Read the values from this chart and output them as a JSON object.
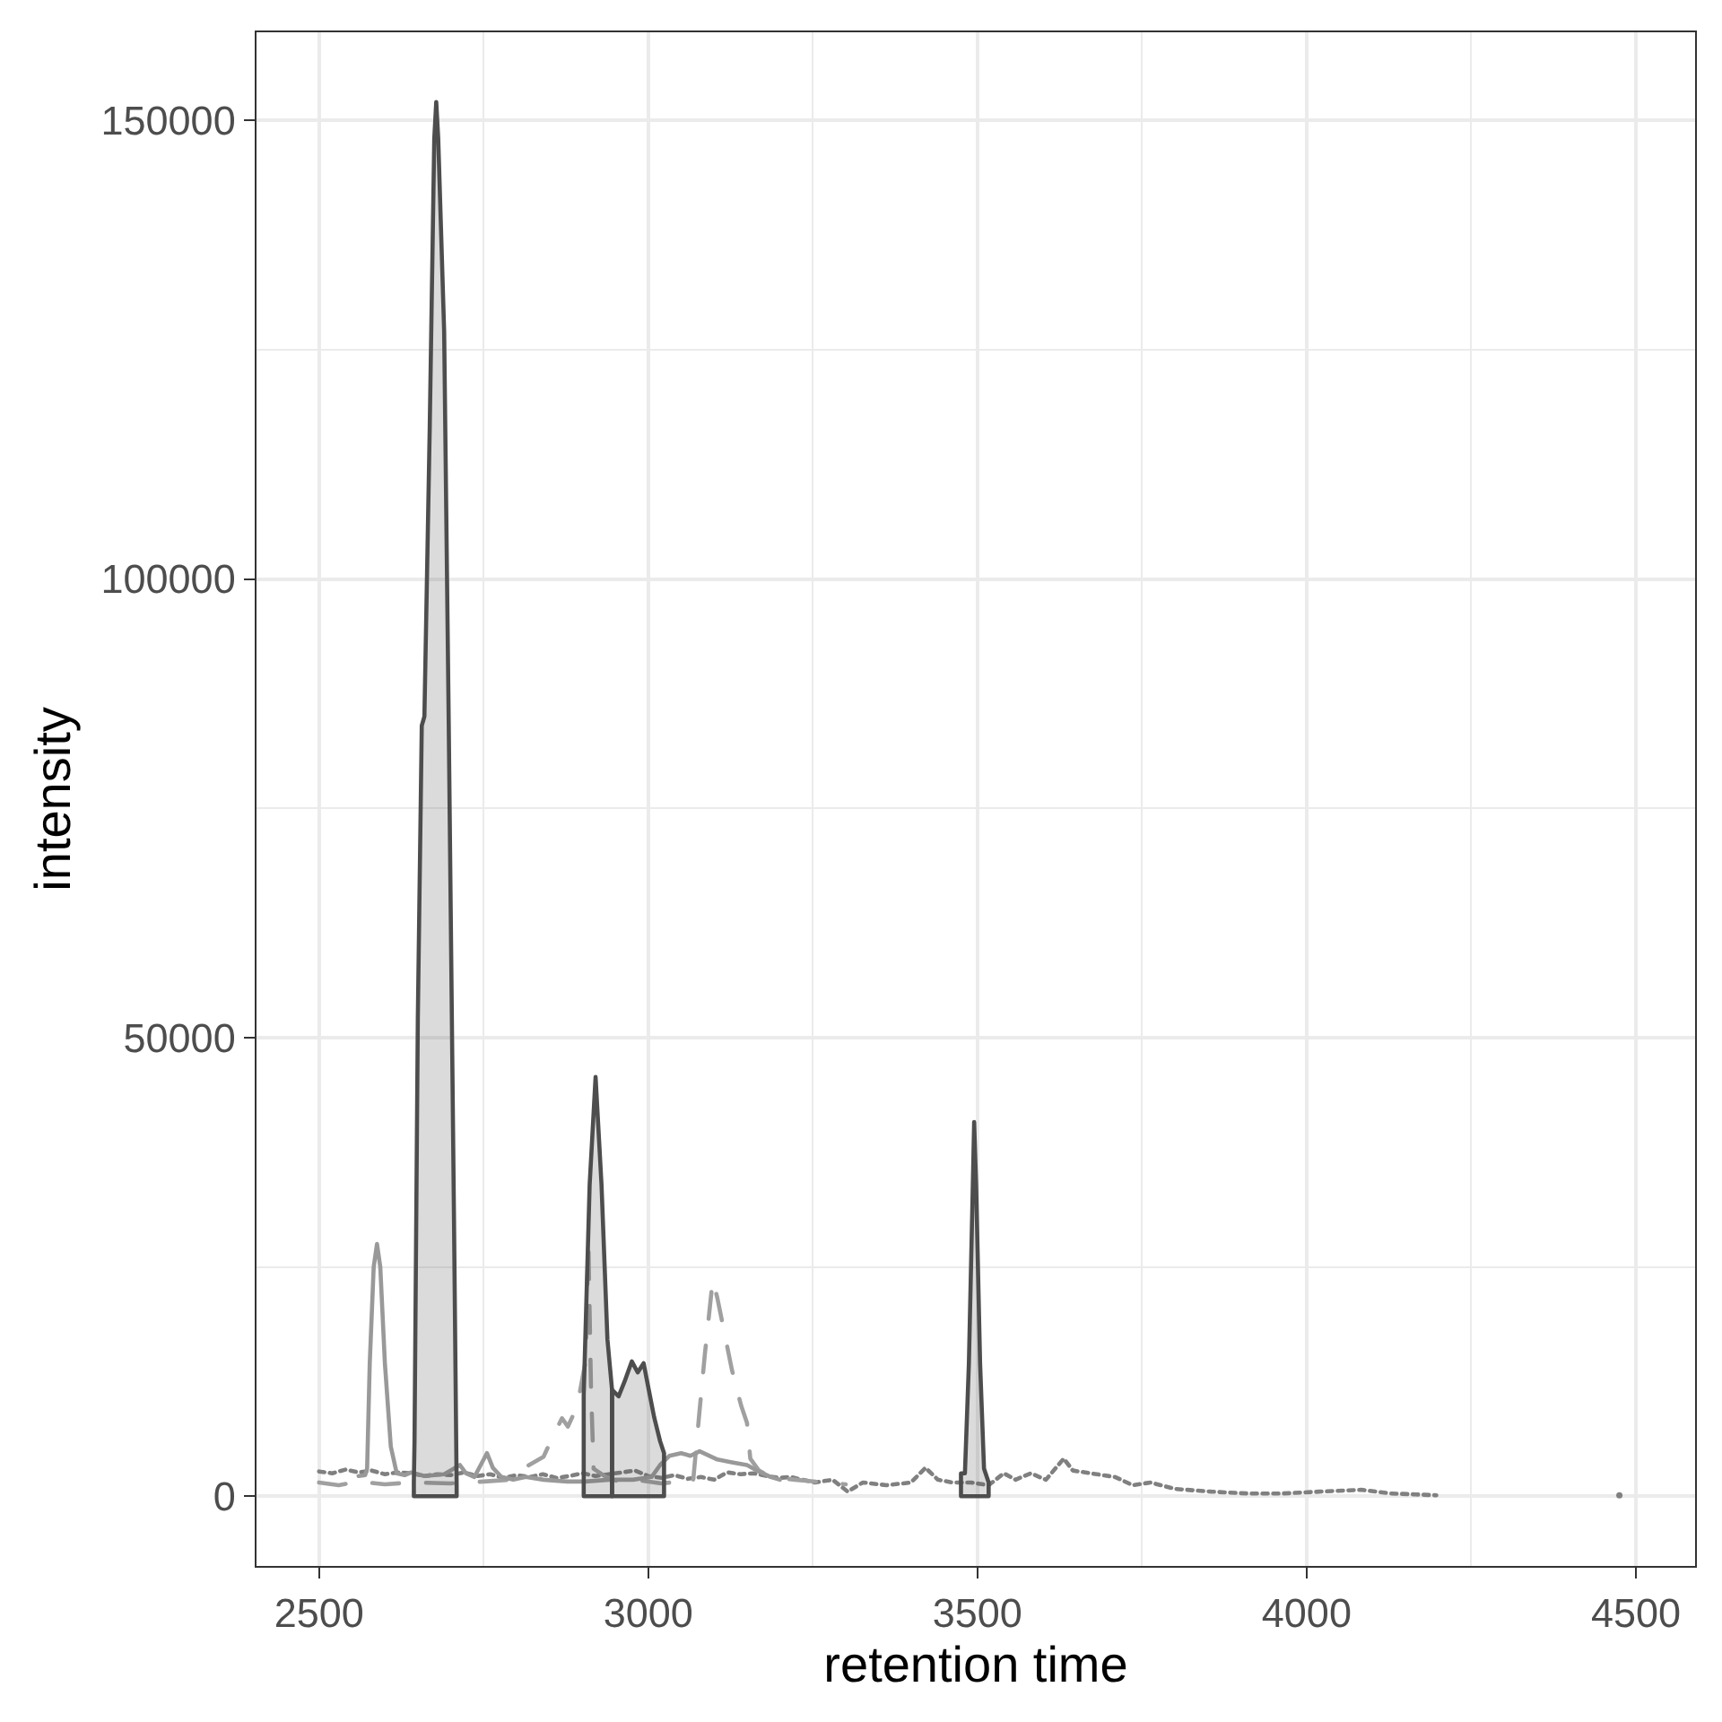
{
  "chart_data": {
    "type": "line",
    "xlabel": "retention time",
    "ylabel": "intensity",
    "xlim": [
      2405,
      4590
    ],
    "ylim": [
      -7600,
      159600
    ],
    "xticks": [
      2500,
      {
        "value": 2750,
        "label": null
      },
      3000,
      {
        "value": 3250,
        "label": null
      },
      3500,
      {
        "value": 3750,
        "label": null
      },
      4000,
      {
        "value": 4250,
        "label": null
      },
      4500
    ],
    "yticks": [
      0,
      {
        "value": 25000,
        "label": null
      },
      50000,
      {
        "value": 75000,
        "label": null
      },
      100000,
      {
        "value": 125000,
        "label": null
      },
      150000
    ],
    "grid": true,
    "series": [
      {
        "line_style": "dotted",
        "color": "#808080",
        "x": [
          2500,
          2520,
          2540,
          2560,
          2580,
          2600,
          2620,
          2640,
          2660,
          2680,
          2700,
          2720,
          2740,
          2760,
          2780,
          2800,
          2820,
          2840,
          2860,
          2880,
          2900,
          2920,
          2940,
          2960,
          2980,
          3000,
          3020,
          3040,
          3060,
          3080,
          3100,
          3120,
          3140,
          3160,
          3180,
          3200,
          3216,
          3253,
          3280,
          3303,
          3326,
          3362,
          3399,
          3421,
          3440,
          3462,
          3490,
          3517,
          3540,
          3558,
          3581,
          3604,
          3631,
          3645,
          3672,
          3709,
          3736,
          3763,
          3800,
          3855,
          3910,
          3964,
          4019,
          4083,
          4128,
          4165,
          4197
        ],
        "values": [
          2700,
          2500,
          2900,
          2600,
          2800,
          2400,
          2600,
          2500,
          2200,
          2400,
          2300,
          2600,
          2200,
          2400,
          2000,
          2300,
          2100,
          2400,
          2000,
          2200,
          2500,
          2200,
          2400,
          2600,
          2800,
          2200,
          2000,
          2300,
          1900,
          2100,
          1800,
          2600,
          2400,
          2500,
          2200,
          2000,
          2100,
          1500,
          1800,
          500,
          1500,
          1200,
          1500,
          3100,
          1800,
          1500,
          1500,
          1200,
          2500,
          1800,
          2500,
          1800,
          4100,
          2800,
          2500,
          2100,
          1200,
          1500,
          800,
          500,
          300,
          300,
          500,
          700,
          300,
          200,
          100
        ]
      },
      {
        "type": "scatter",
        "marker": "circle",
        "color": "#808080",
        "x": [
          4475
        ],
        "values": [
          100
        ]
      },
      {
        "line_style": "dashed",
        "color": "#a0a0a0",
        "x": [
          2500,
          2530,
          2560,
          2600,
          2640,
          2700,
          2750,
          2790,
          2819,
          2841,
          2855,
          2869,
          2878,
          2887,
          2896,
          2905,
          2909,
          2913,
          2917,
          2936,
          2959,
          2990,
          3020,
          3050,
          3068,
          3077,
          3086,
          3098,
          3105,
          3127,
          3141,
          3150,
          3155,
          3168,
          3186,
          3223,
          3268,
          3300
        ],
        "values": [
          1500,
          1200,
          1600,
          1300,
          1500,
          1400,
          1600,
          1800,
          3400,
          4300,
          6500,
          8500,
          7600,
          9000,
          11300,
          14800,
          27800,
          12000,
          3000,
          2100,
          1500,
          1700,
          1400,
          1600,
          1500,
          8600,
          15500,
          23600,
          21600,
          13800,
          9900,
          8000,
          4100,
          2800,
          2100,
          1800,
          1500,
          1300
        ]
      },
      {
        "line_style": "solid",
        "color": "#999999",
        "x": [
          2560,
          2570,
          2573,
          2577,
          2583,
          2588,
          2593,
          2600,
          2609,
          2618,
          2630,
          2640,
          2660,
          2690,
          2714,
          2723,
          2736,
          2755,
          2764,
          2777,
          2795,
          2814,
          2841,
          2877,
          2904,
          2941,
          2977,
          3005,
          3018,
          3032,
          3050,
          3064,
          3078,
          3105,
          3127,
          3150,
          3168,
          3186,
          3200
        ],
        "values": [
          2200,
          2300,
          3000,
          14500,
          25000,
          27500,
          25000,
          14500,
          5400,
          2500,
          2300,
          2600,
          2200,
          2400,
          3400,
          2500,
          2100,
          4700,
          3100,
          2100,
          1800,
          2100,
          1800,
          1600,
          1600,
          1800,
          1800,
          2100,
          3400,
          4400,
          4700,
          4400,
          4900,
          4000,
          3700,
          3400,
          2700,
          2100,
          1800
        ]
      },
      {
        "type": "area",
        "color": "#4d4d4d",
        "x": [
          2644,
          2644,
          2645,
          2650,
          2656,
          2660,
          2668,
          2675,
          2678,
          2681,
          2690,
          2697,
          2705,
          2709,
          2709
        ],
        "values": [
          0,
          1500,
          6000,
          52000,
          84000,
          85000,
          116000,
          148000,
          152000,
          148000,
          127000,
          84000,
          30000,
          1000,
          0
        ]
      },
      {
        "type": "area",
        "color": "#4d4d4d",
        "x": [
          2902,
          2902,
          2911,
          2920,
          2929,
          2938,
          2945,
          2945
        ],
        "values": [
          0,
          11000,
          34000,
          45700,
          34000,
          17100,
          11600,
          0
        ]
      },
      {
        "type": "area",
        "color": "#4d4d4d",
        "x": [
          2945,
          2945,
          2955,
          2964,
          2975,
          2984,
          2993,
          3000,
          3009,
          3018,
          3024,
          3024
        ],
        "values": [
          0,
          11600,
          10900,
          12500,
          14700,
          13500,
          14500,
          11900,
          8600,
          6000,
          4700,
          0
        ]
      },
      {
        "type": "area",
        "color": "#4d4d4d",
        "x": [
          3475,
          3475,
          3481,
          3487,
          3493,
          3495,
          3498,
          3504,
          3510,
          3517,
          3517
        ],
        "values": [
          0,
          2500,
          2500,
          14500,
          34000,
          40800,
          34000,
          14500,
          3000,
          1500,
          0
        ]
      }
    ]
  }
}
